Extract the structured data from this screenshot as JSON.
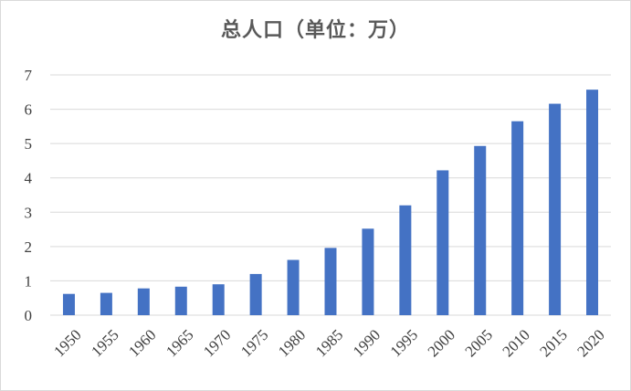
{
  "chart_data": {
    "type": "bar",
    "title": "总人口（单位：万）",
    "xlabel": "",
    "ylabel": "",
    "categories": [
      "1950",
      "1955",
      "1960",
      "1965",
      "1970",
      "1975",
      "1980",
      "1985",
      "1990",
      "1995",
      "2000",
      "2005",
      "2010",
      "2015",
      "2020"
    ],
    "values": [
      0.62,
      0.65,
      0.78,
      0.83,
      0.9,
      1.2,
      1.61,
      1.96,
      2.52,
      3.2,
      4.22,
      4.93,
      5.65,
      6.16,
      6.57
    ],
    "ylim": [
      0,
      7
    ],
    "yticks": [
      "0",
      "1",
      "2",
      "3",
      "4",
      "5",
      "6",
      "7"
    ],
    "grid": true,
    "legend": "none",
    "bar_color": "#4472c4",
    "grid_color": "#d9d9d9"
  }
}
